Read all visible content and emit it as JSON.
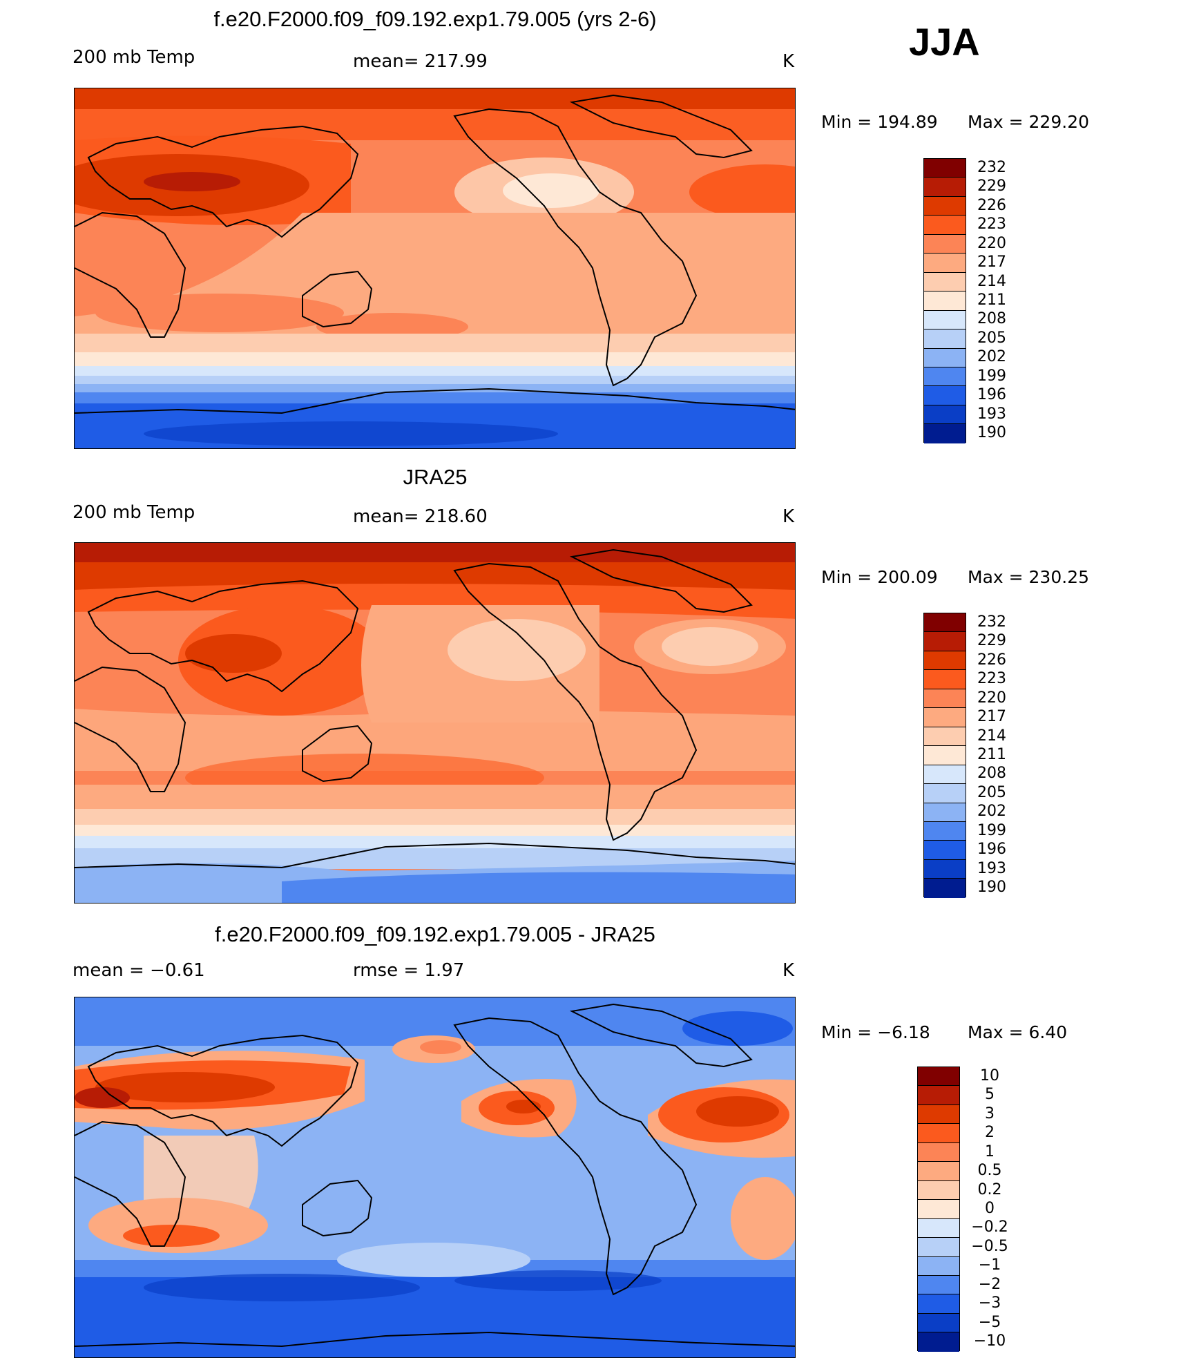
{
  "season": "JJA",
  "panels": [
    {
      "id": "model",
      "title": "f.e20.F2000.f09_f09.192.exp1.79.005 (yrs 2-6)",
      "variable": "200 mb Temp",
      "stat": "mean=  217.99",
      "units": "K",
      "min_label": "Min  =  194.89",
      "max_label": "Max  =  229.20",
      "colorbar": [
        "232",
        "229",
        "226",
        "223",
        "220",
        "217",
        "214",
        "211",
        "208",
        "205",
        "202",
        "199",
        "196",
        "193",
        "190"
      ]
    },
    {
      "id": "obs",
      "title": "JRA25",
      "variable": "200 mb Temp",
      "stat": "mean=  218.60",
      "units": "K",
      "min_label": "Min  =  200.09",
      "max_label": "Max  =  230.25",
      "colorbar": [
        "232",
        "229",
        "226",
        "223",
        "220",
        "217",
        "214",
        "211",
        "208",
        "205",
        "202",
        "199",
        "196",
        "193",
        "190"
      ]
    },
    {
      "id": "diff",
      "title": "f.e20.F2000.f09_f09.192.exp1.79.005 - JRA25",
      "stat_mean": "mean  =    −0.61",
      "stat_rmse": "rmse  =     1.97",
      "units": "K",
      "min_label": "Min  =    −6.18",
      "max_label": "Max  =       6.40",
      "colorbar": [
        "10",
        "5",
        "3",
        "2",
        "1",
        "0.5",
        "0.2",
        "0",
        "−0.2",
        "−0.5",
        "−1",
        "−2",
        "−3",
        "−5",
        "−10"
      ]
    }
  ],
  "colors": {
    "abs_scale": [
      "#800000",
      "#b71c05",
      "#de3a00",
      "#fb5a1e",
      "#fc8456",
      "#fdaa80",
      "#fdcdb0",
      "#fee8d6",
      "#d7e7fb",
      "#b7d0f7",
      "#8cb3f4",
      "#4f86f0",
      "#1f5ce6",
      "#0a3ec6",
      "#001c90"
    ],
    "diff_scale": [
      "#800000",
      "#b71c05",
      "#de3a00",
      "#fb5a1e",
      "#fc8456",
      "#fdaa80",
      "#fdcdb0",
      "#fee8d6",
      "#d7e7fb",
      "#b7d0f7",
      "#8cb3f4",
      "#4f86f0",
      "#1f5ce6",
      "#0a3ec6",
      "#001c90"
    ]
  }
}
